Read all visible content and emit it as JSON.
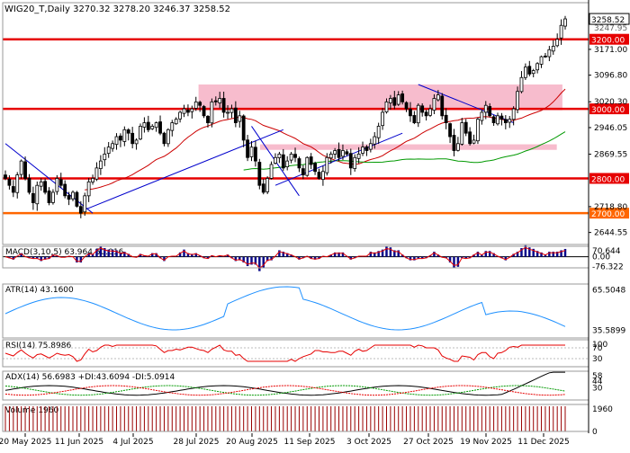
{
  "chart_data": {
    "type": "line",
    "symbol": "WIG20_T",
    "timeframe": "Daily",
    "header": "WIG20_T,Daily  3270.32 3278.20 3246.37 3258.52",
    "ohlc_last": {
      "open": 3270.32,
      "high": 3278.2,
      "low": 3246.37,
      "close": 3258.52
    },
    "price_axis": {
      "ylim": [
        2610,
        3300
      ],
      "ticks": [
        "3171.00",
        "3096.80",
        "3020.30",
        "2946.05",
        "2869.55",
        "2718.80",
        "2644.55"
      ],
      "clipped_labels": [
        "3247.95"
      ],
      "current_price_label": "3258.52",
      "level_labels": [
        "3200.00",
        "3000.00",
        "2800.00",
        "2700.00"
      ]
    },
    "x_ticks": [
      "20 May 2025",
      "11 Jun 2025",
      "4 Jul 2025",
      "28 Jul 2025",
      "20 Aug 2025",
      "11 Sep 2025",
      "3 Oct 2025",
      "27 Oct 2025",
      "19 Nov 2025",
      "11 Dec 2025"
    ],
    "levels": [
      {
        "value": 3200,
        "label": "3200.00",
        "color": "#e60000"
      },
      {
        "value": 3000,
        "label": "3000.00",
        "color": "#e60000"
      },
      {
        "value": 2800,
        "label": "2800.00",
        "color": "#e60000"
      },
      {
        "value": 2700,
        "label": "2700.00",
        "color": "#ff6600"
      }
    ],
    "zones": [
      {
        "from": 2996,
        "to": 3070,
        "color": "#f4a0b8"
      },
      {
        "from": 2882,
        "to": 2898,
        "color": "#f4a0b8"
      }
    ],
    "closes": [
      2800,
      2780,
      2760,
      2810,
      2850,
      2800,
      2760,
      2730,
      2780,
      2790,
      2760,
      2730,
      2760,
      2800,
      2780,
      2750,
      2740,
      2760,
      2720,
      2700,
      2750,
      2790,
      2800,
      2830,
      2850,
      2870,
      2890,
      2900,
      2920,
      2910,
      2940,
      2930,
      2900,
      2910,
      2950,
      2960,
      2940,
      2950,
      2960,
      2930,
      2900,
      2940,
      2960,
      2970,
      2990,
      3000,
      2990,
      3000,
      3020,
      3010,
      2980,
      2960,
      3020,
      3020,
      3030,
      2990,
      2990,
      3000,
      2960,
      2980,
      2910,
      2860,
      2890,
      2850,
      2780,
      2760,
      2800,
      2840,
      2860,
      2870,
      2830,
      2850,
      2870,
      2860,
      2830,
      2810,
      2860,
      2840,
      2820,
      2800,
      2820,
      2860,
      2870,
      2880,
      2860,
      2880,
      2870,
      2830,
      2860,
      2870,
      2890,
      2880,
      2900,
      2920,
      2950,
      2990,
      3020,
      3030,
      3010,
      3040,
      3020,
      3000,
      2980,
      2960,
      3010,
      2990,
      2980,
      3000,
      3030,
      3040,
      2980,
      2960,
      2920,
      2880,
      2900,
      2960,
      2930,
      2900,
      2910,
      2970,
      2990,
      3010,
      2980,
      2960,
      2980,
      2970,
      2960,
      2970,
      3000,
      3050,
      3090,
      3120,
      3100,
      3110,
      3130,
      3150,
      3150,
      3170,
      3180,
      3200,
      3240,
      3258.52
    ],
    "moving_averages": [
      {
        "color": "#cc0000",
        "from": [
          2720,
          2966
        ]
      },
      {
        "color": "#009900",
        "from": [
          2600,
          2872
        ]
      }
    ],
    "trendlines": [
      {
        "color": "#0000cc",
        "from": [
          2900,
          2700
        ]
      },
      {
        "color": "#0000cc",
        "from": [
          2710,
          2940
        ]
      },
      {
        "color": "#0000cc",
        "from": [
          2950,
          2750
        ]
      },
      {
        "color": "#0000cc",
        "from": [
          2780,
          2930
        ]
      },
      {
        "color": "#0000cc",
        "from": [
          3070,
          2960
        ]
      }
    ],
    "indicators": [
      {
        "name": "MACD",
        "label": "MACD(3,10,5) 63.964 50.016",
        "ticks": [
          "70.644",
          "0.00",
          "-76.322"
        ],
        "ylim": [
          -85,
          80
        ],
        "type": "histogram+line"
      },
      {
        "name": "ATR",
        "label": "ATR(14) 43.1600",
        "ticks": [
          "65.5048",
          "35.5899"
        ],
        "ylim": [
          30,
          70
        ],
        "type": "line",
        "color": "#1e90ff"
      },
      {
        "name": "RSI",
        "label": "RSI(14) 75.8986",
        "ticks": [
          "100",
          "70",
          "30"
        ],
        "ylim": [
          0,
          100
        ],
        "type": "line",
        "color": "#e60000"
      },
      {
        "name": "ADX",
        "label": "ADX(14) 56.6983 +DI:43.6094 -DI:5.0914",
        "ticks": [
          "58",
          "44",
          "30"
        ],
        "ylim": [
          5,
          65
        ],
        "type": "lines"
      },
      {
        "name": "Volume",
        "label": "Volume 1960",
        "ticks": [
          "1960",
          "0"
        ],
        "ylim": [
          0,
          2000
        ],
        "type": "bars",
        "color": "#990000"
      }
    ]
  }
}
